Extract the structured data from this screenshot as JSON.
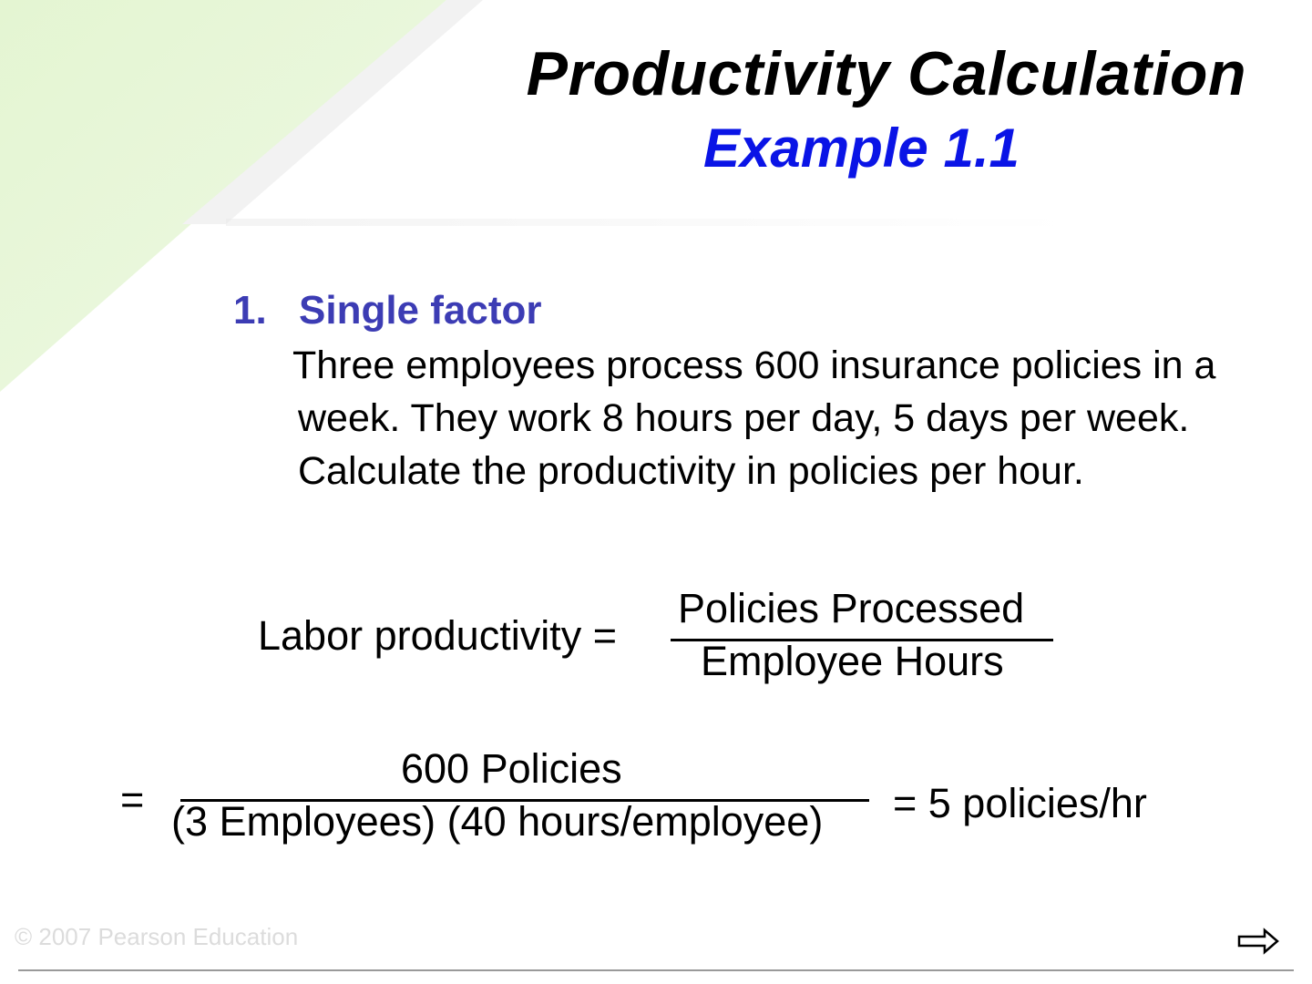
{
  "slide": {
    "title": "Productivity Calculation",
    "subtitle": "Example 1.1",
    "bullet": {
      "number": "1.",
      "heading": "Single factor"
    },
    "problem_text": "Three employees process 600 insurance policies in a week. They work 8 hours per day, 5 days per week. Calculate the productivity in policies per hour.",
    "formula1": {
      "label": "Labor productivity =",
      "numerator": "Policies Processed",
      "denominator": "Employee Hours"
    },
    "formula2": {
      "equals": "=",
      "numerator": "600 Policies",
      "denominator": "(3 Employees) (40 hours/employee)",
      "result": "= 5 policies/hr"
    },
    "footer": {
      "copyright": "© 2007 Pearson Education",
      "next_icon": "right-arrow-icon"
    },
    "colors": {
      "title": "#000000",
      "subtitle": "#0a14e6",
      "bullet_heading": "#3c3cb4",
      "decor_green": "#e8f6d8"
    }
  }
}
